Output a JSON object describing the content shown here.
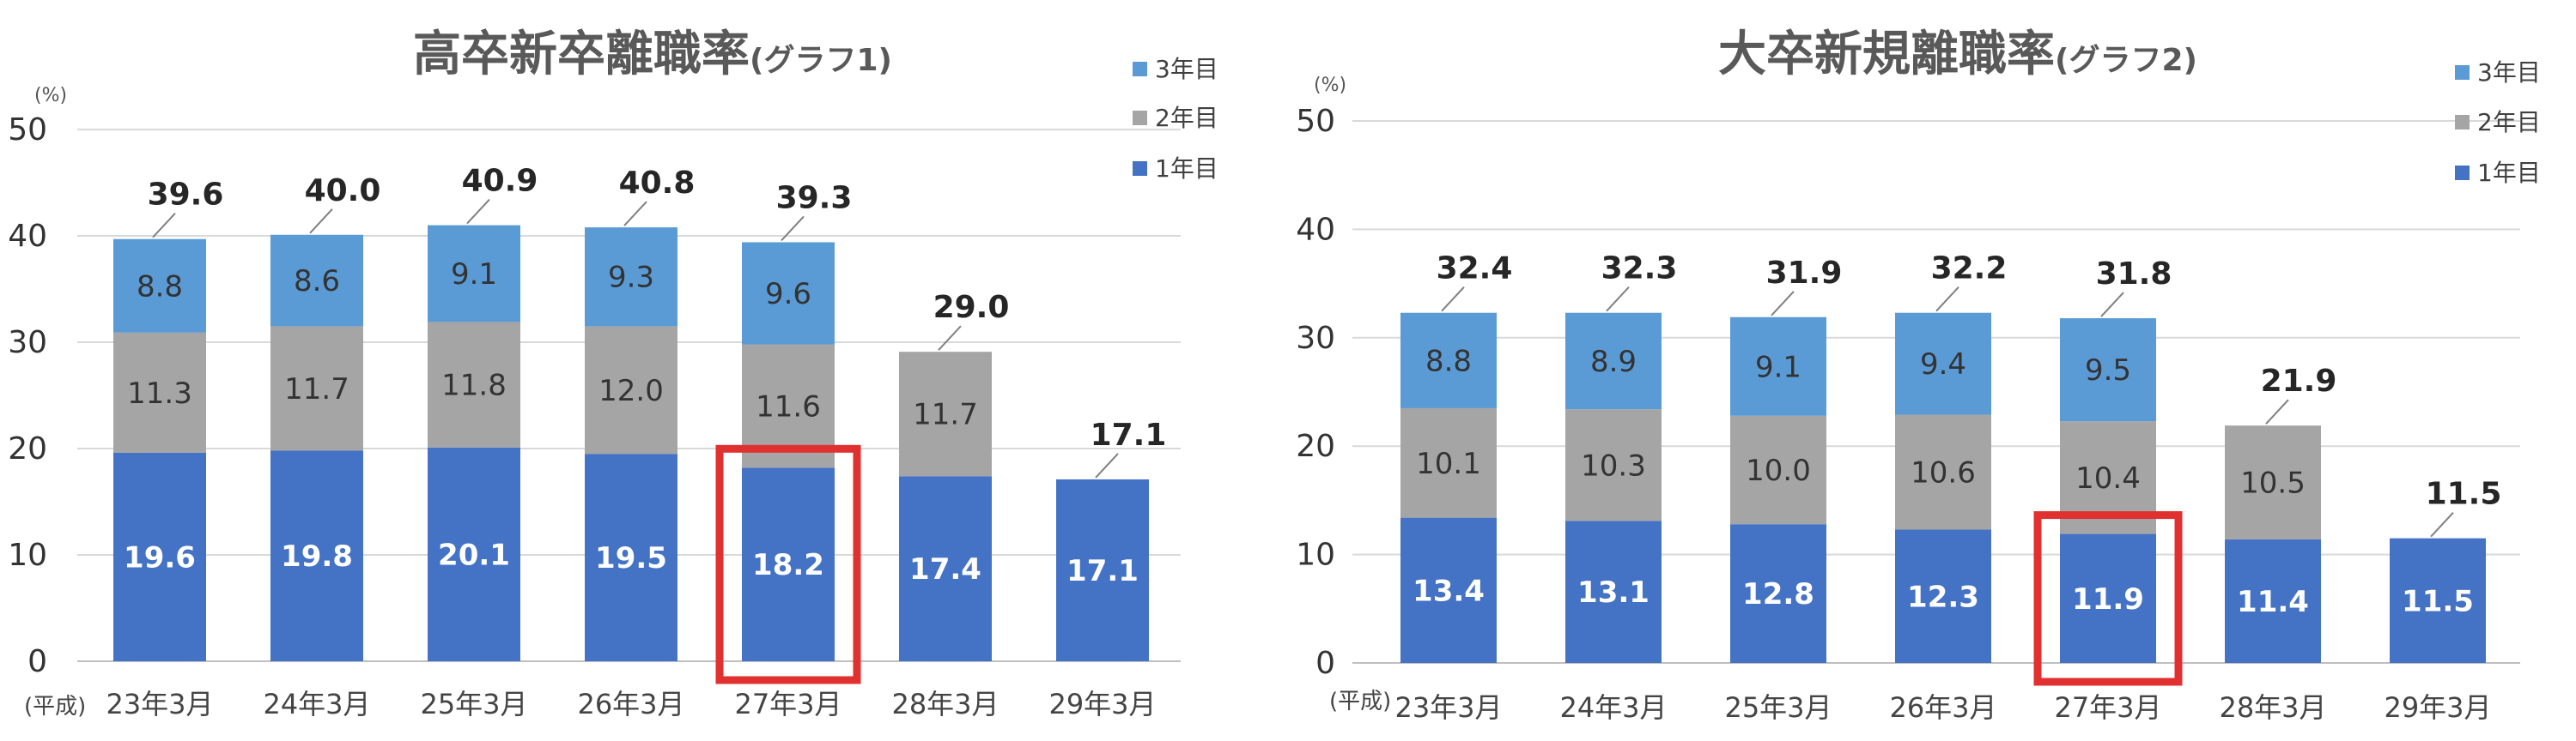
{
  "colors": {
    "year1": "#4472C4",
    "year2": "#A5A5A5",
    "year3": "#5B9BD5",
    "highlight": "#E03030",
    "grid": "#D9D9D9"
  },
  "chart_data": [
    {
      "type": "bar",
      "stacked": true,
      "title_main": "高卒新卒離職率",
      "title_sub": "(グラフ1)",
      "unit": "(%)",
      "era_label": "(平成)",
      "ylim": [
        0,
        50
      ],
      "yticks": [
        0,
        10,
        20,
        30,
        40,
        50
      ],
      "grid": true,
      "legend_position": "top-right",
      "categories": [
        "23年3月",
        "24年3月",
        "25年3月",
        "26年3月",
        "27年3月",
        "28年3月",
        "29年3月"
      ],
      "series": [
        {
          "name": "1年目",
          "values": [
            19.6,
            19.8,
            20.1,
            19.5,
            18.2,
            17.4,
            17.1
          ]
        },
        {
          "name": "2年目",
          "values": [
            11.3,
            11.7,
            11.8,
            12.0,
            11.6,
            11.7,
            null
          ]
        },
        {
          "name": "3年目",
          "values": [
            8.8,
            8.6,
            9.1,
            9.3,
            9.6,
            null,
            null
          ]
        }
      ],
      "totals": [
        39.6,
        40.0,
        40.9,
        40.8,
        39.3,
        29.0,
        17.1
      ],
      "highlight_category": "27年3月"
    },
    {
      "type": "bar",
      "stacked": true,
      "title_main": "大卒新規離職率",
      "title_sub": "(グラフ2)",
      "unit": "(%)",
      "era_label": "(平成)",
      "ylim": [
        0,
        50
      ],
      "yticks": [
        0,
        10,
        20,
        30,
        40,
        50
      ],
      "grid": true,
      "legend_position": "top-right",
      "categories": [
        "23年3月",
        "24年3月",
        "25年3月",
        "26年3月",
        "27年3月",
        "28年3月",
        "29年3月"
      ],
      "series": [
        {
          "name": "1年目",
          "values": [
            13.4,
            13.1,
            12.8,
            12.3,
            11.9,
            11.4,
            11.5
          ]
        },
        {
          "name": "2年目",
          "values": [
            10.1,
            10.3,
            10.0,
            10.6,
            10.4,
            10.5,
            null
          ]
        },
        {
          "name": "3年目",
          "values": [
            8.8,
            8.9,
            9.1,
            9.4,
            9.5,
            null,
            null
          ]
        }
      ],
      "totals": [
        32.4,
        32.3,
        31.9,
        32.2,
        31.8,
        21.9,
        11.5
      ],
      "highlight_category": "27年3月"
    }
  ]
}
